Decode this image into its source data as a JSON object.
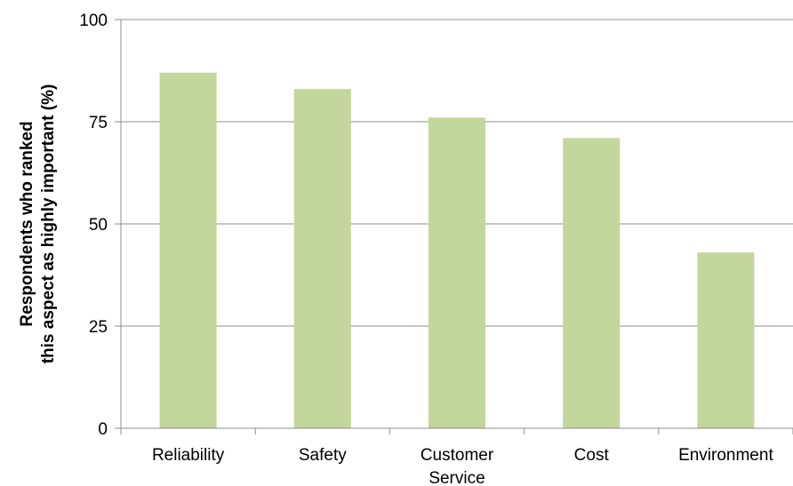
{
  "chart_data": {
    "type": "bar",
    "categories": [
      "Reliability",
      "Safety",
      "Customer Service",
      "Cost",
      "Environment"
    ],
    "category_lines": [
      [
        "Reliability"
      ],
      [
        "Safety"
      ],
      [
        "Customer",
        "Service"
      ],
      [
        "Cost"
      ],
      [
        "Environment"
      ]
    ],
    "values": [
      87,
      83,
      76,
      71,
      43
    ],
    "title": "",
    "xlabel": "",
    "ylabel": "Respondents who ranked this aspect as highly important (%)",
    "ylabel_lines": [
      "Respondents who ranked",
      "this aspect as highly important (%)"
    ],
    "ylim": [
      0,
      100
    ],
    "yticks": [
      "0",
      "25",
      "50",
      "75",
      "100"
    ],
    "grid": true,
    "legend": "none",
    "bar_color": "#c3d69b",
    "grid_color": "#8c8c8c",
    "axis_color": "#8c8c8c"
  }
}
